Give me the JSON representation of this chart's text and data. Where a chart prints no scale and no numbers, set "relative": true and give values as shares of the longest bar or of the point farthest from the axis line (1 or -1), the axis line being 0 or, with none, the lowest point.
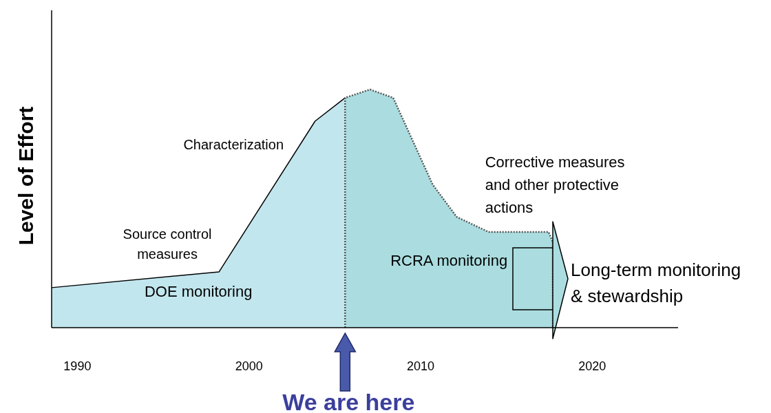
{
  "chart_data": {
    "type": "area",
    "relative": true,
    "ylabel": "Level of Effort",
    "xlim": [
      1988.5,
      2025
    ],
    "xticks": [
      1990,
      2000,
      2010,
      2020
    ],
    "grid": false,
    "legend": false,
    "series": [
      {
        "name": "DOE monitoring",
        "color": "#c2e6ee",
        "line_style": "solid",
        "x": [
          1988.5,
          1998.25,
          2003.85,
          2005.6
        ],
        "values": [
          0.168,
          0.234,
          0.867,
          0.965
        ]
      },
      {
        "name": "RCRA monitoring",
        "color": "#abdde0",
        "line_style": "dotted",
        "x": [
          2005.6,
          2005.6,
          2007.05,
          2008.4,
          2010.7,
          2012.1,
          2013.95,
          2017.45,
          2017.7,
          2017.7
        ],
        "values": [
          0,
          0.965,
          1.0,
          0.965,
          0.601,
          0.465,
          0.402,
          0.402,
          0.36,
          0
        ]
      }
    ],
    "annotations": [
      {
        "text": "Source control measures",
        "x": 1998.25,
        "y": 0.234
      },
      "Characterization",
      {
        "text": "Corrective measures and other protective actions",
        "x": 2015.6,
        "y": 0.402
      },
      "Long-term monitoring & stewardship",
      {
        "text": "We are here",
        "x": 2005.6,
        "y": 0
      }
    ]
  }
}
